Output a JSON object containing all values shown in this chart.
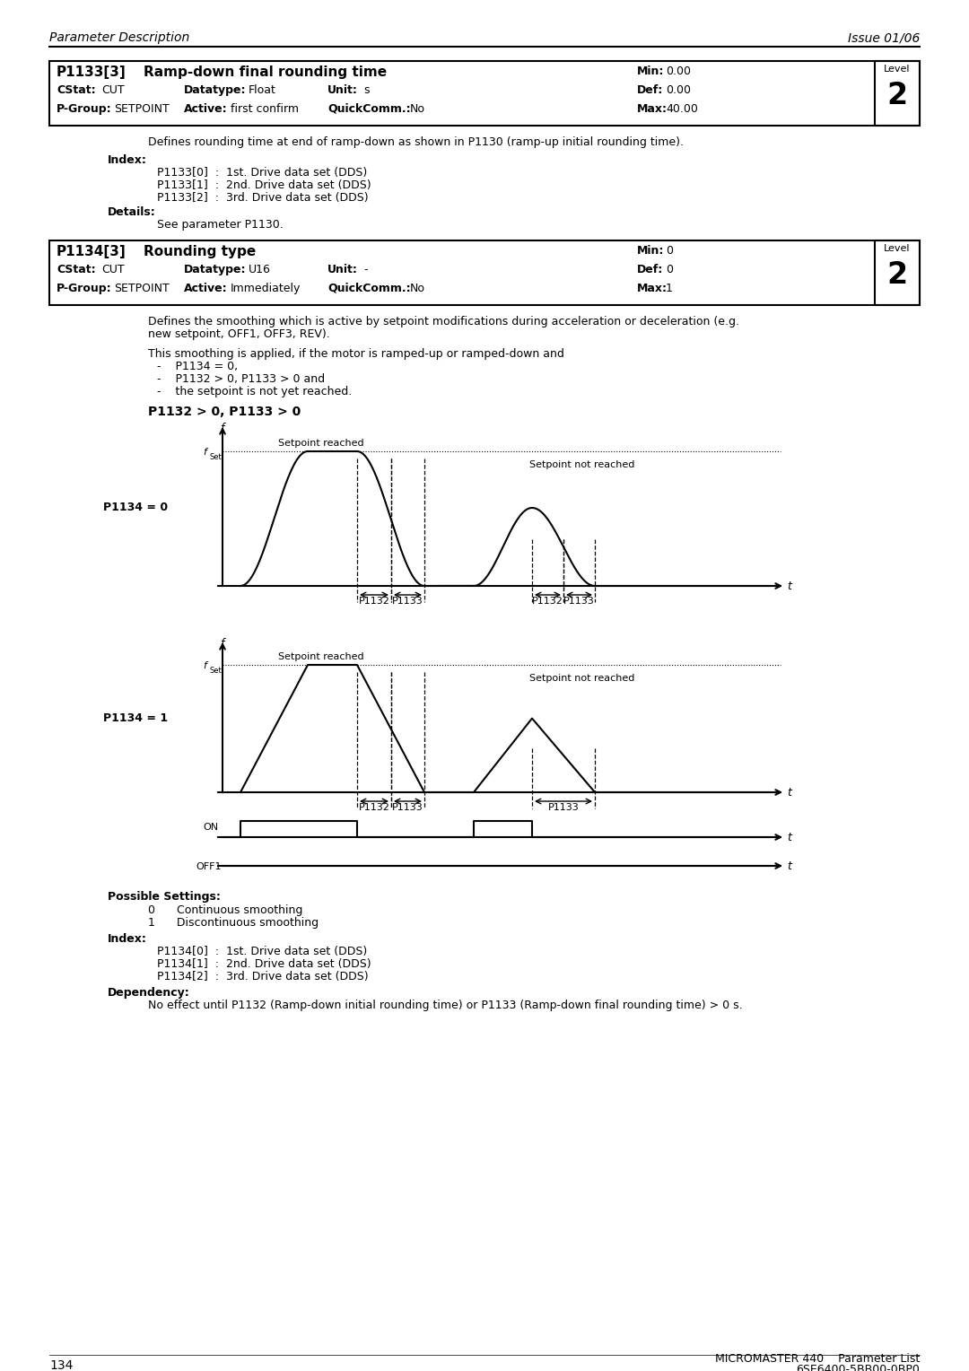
{
  "page_title_left": "Parameter Description",
  "page_title_right": "Issue 01/06",
  "page_number": "134",
  "footer_right1": "MICROMASTER 440    Parameter List",
  "footer_right2": "6SE6400-5BB00-0BP0",
  "p1133_param": "P1133[3]",
  "p1133_title": "Ramp-down final rounding time",
  "p1133_min": "0.00",
  "p1133_def": "0.00",
  "p1133_max": "40.00",
  "p1133_cstat": "CUT",
  "p1133_datatype": "Float",
  "p1133_unit": "s",
  "p1133_pgroup": "SETPOINT",
  "p1133_active": "first confirm",
  "p1133_quickcomm": "No",
  "p1133_level": "2",
  "p1133_desc": "Defines rounding time at end of ramp-down as shown in P1130 (ramp-up initial rounding time).",
  "p1133_index0": "P1133[0]  :  1st. Drive data set (DDS)",
  "p1133_index1": "P1133[1]  :  2nd. Drive data set (DDS)",
  "p1133_index2": "P1133[2]  :  3rd. Drive data set (DDS)",
  "p1133_details": "See parameter P1130.",
  "p1134_param": "P1134[3]",
  "p1134_title": "Rounding type",
  "p1134_min": "0",
  "p1134_def": "0",
  "p1134_max": "1",
  "p1134_cstat": "CUT",
  "p1134_datatype": "U16",
  "p1134_unit": "-",
  "p1134_pgroup": "SETPOINT",
  "p1134_active": "Immediately",
  "p1134_quickcomm": "No",
  "p1134_level": "2",
  "p1134_desc1": "Defines the smoothing which is active by setpoint modifications during acceleration or deceleration (e.g.",
  "p1134_desc2": "new setpoint, OFF1, OFF3, REV).",
  "p1134_smooth_title": "This smoothing is applied, if the motor is ramped-up or ramped-down and",
  "p1134_cond1": "P1134 = 0,",
  "p1134_cond2": "P1132 > 0, P1133 > 0 and",
  "p1134_cond3": "the setpoint is not yet reached.",
  "chart_title": "P1132 > 0, P1133 > 0",
  "p1134_0_label": "P1134 = 0",
  "p1134_1_label": "P1134 = 1",
  "setpoint_reached": "Setpoint reached",
  "setpoint_not_reached": "Setpoint not reached",
  "possible_settings_title": "Possible Settings:",
  "setting_0": "0      Continuous smoothing",
  "setting_1": "1      Discontinuous smoothing",
  "index_label": "Index:",
  "p1134_index0": "P1134[0]  :  1st. Drive data set (DDS)",
  "p1134_index1": "P1134[1]  :  2nd. Drive data set (DDS)",
  "p1134_index2": "P1134[2]  :  3rd. Drive data set (DDS)",
  "dependency_label": "Dependency:",
  "dependency_text": "No effect until P1132 (Ramp-down initial rounding time) or P1133 (Ramp-down final rounding time) > 0 s.",
  "bg_color": "#ffffff",
  "text_color": "#000000"
}
